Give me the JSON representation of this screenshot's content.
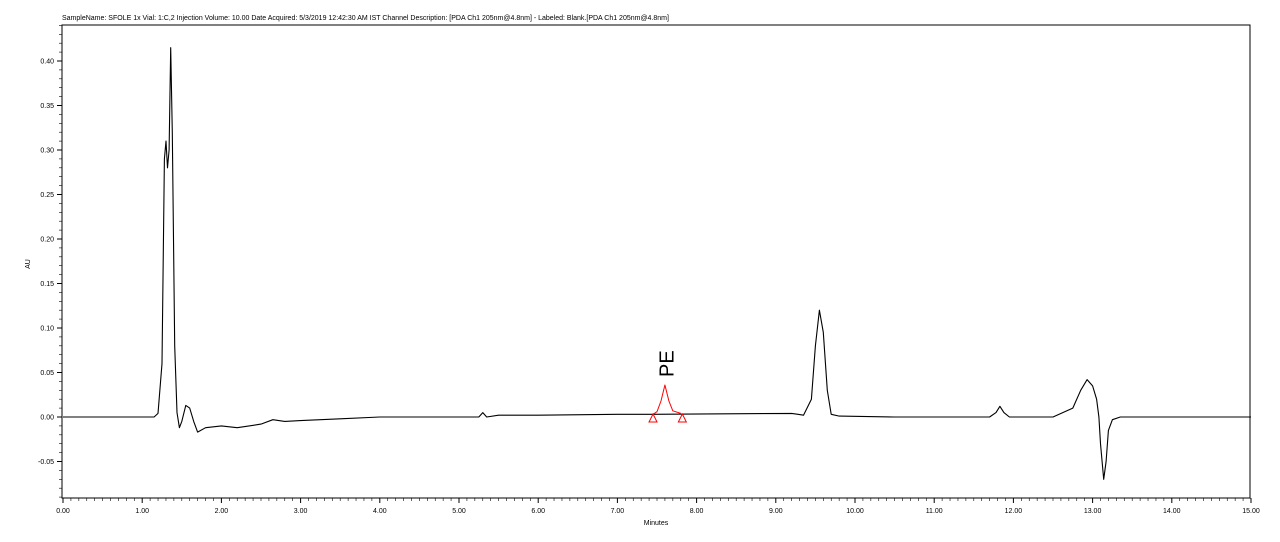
{
  "header": "SampleName: SFOLE 1x Vial: 1:C,2 Injection Volume: 10.00 Date Acquired: 5/3/2019 12:42:30 AM IST Channel Description: [PDA Ch1 205nm@4.8nm] - Labeled: Blank.[PDA Ch1 205nm@4.8nm]",
  "chart_data": {
    "type": "line",
    "title": "",
    "xlabel": "Minutes",
    "ylabel": "AU",
    "xlim": [
      0.0,
      15.0
    ],
    "ylim": [
      -0.095,
      0.44
    ],
    "x_ticks": [
      "0.00",
      "1.00",
      "2.00",
      "3.00",
      "4.00",
      "5.00",
      "6.00",
      "7.00",
      "8.00",
      "9.00",
      "10.00",
      "11.00",
      "12.00",
      "13.00",
      "14.00",
      "15.00"
    ],
    "x_tick_values": [
      0,
      1,
      2,
      3,
      4,
      5,
      6,
      7,
      8,
      9,
      10,
      11,
      12,
      13,
      14,
      15
    ],
    "y_ticks": [
      "-0.05",
      "0.00",
      "0.05",
      "0.10",
      "0.15",
      "0.20",
      "0.25",
      "0.30",
      "0.35",
      "0.40"
    ],
    "y_tick_values": [
      -0.05,
      0.0,
      0.05,
      0.1,
      0.15,
      0.2,
      0.25,
      0.3,
      0.35,
      0.4
    ],
    "grid": false,
    "series": [
      {
        "color": "#000000",
        "points": [
          [
            0.0,
            0.0
          ],
          [
            1.15,
            0.0
          ],
          [
            1.2,
            0.004
          ],
          [
            1.25,
            0.06
          ],
          [
            1.28,
            0.29
          ],
          [
            1.3,
            0.31
          ],
          [
            1.32,
            0.28
          ],
          [
            1.34,
            0.3
          ],
          [
            1.36,
            0.415
          ],
          [
            1.38,
            0.32
          ],
          [
            1.41,
            0.08
          ],
          [
            1.44,
            0.005
          ],
          [
            1.47,
            -0.012
          ],
          [
            1.5,
            -0.005
          ],
          [
            1.55,
            0.013
          ],
          [
            1.6,
            0.01
          ],
          [
            1.65,
            -0.005
          ],
          [
            1.7,
            -0.017
          ],
          [
            1.8,
            -0.012
          ],
          [
            2.0,
            -0.01
          ],
          [
            2.2,
            -0.012
          ],
          [
            2.5,
            -0.008
          ],
          [
            2.65,
            -0.003
          ],
          [
            2.8,
            -0.005
          ],
          [
            3.0,
            -0.004
          ],
          [
            3.5,
            -0.002
          ],
          [
            4.0,
            0.0
          ],
          [
            5.0,
            0.0
          ],
          [
            5.25,
            0.0
          ],
          [
            5.3,
            0.005
          ],
          [
            5.35,
            0.0
          ],
          [
            5.5,
            0.002
          ],
          [
            6.0,
            0.002
          ],
          [
            7.0,
            0.003
          ],
          [
            7.45,
            0.003
          ],
          [
            9.2,
            0.004
          ],
          [
            9.28,
            0.003
          ],
          [
            9.35,
            0.002
          ],
          [
            9.45,
            0.02
          ],
          [
            9.5,
            0.08
          ],
          [
            9.55,
            0.12
          ],
          [
            9.6,
            0.095
          ],
          [
            9.65,
            0.03
          ],
          [
            9.7,
            0.003
          ],
          [
            9.8,
            0.001
          ],
          [
            10.5,
            0.0
          ],
          [
            11.0,
            0.0
          ],
          [
            11.7,
            0.0
          ],
          [
            11.78,
            0.005
          ],
          [
            11.83,
            0.012
          ],
          [
            11.88,
            0.005
          ],
          [
            11.95,
            0.0
          ],
          [
            12.5,
            0.0
          ],
          [
            12.75,
            0.01
          ],
          [
            12.85,
            0.03
          ],
          [
            12.93,
            0.042
          ],
          [
            13.0,
            0.035
          ],
          [
            13.05,
            0.02
          ],
          [
            13.08,
            0.0
          ],
          [
            13.1,
            -0.03
          ],
          [
            13.14,
            -0.07
          ],
          [
            13.17,
            -0.05
          ],
          [
            13.2,
            -0.015
          ],
          [
            13.25,
            -0.003
          ],
          [
            13.35,
            0.0
          ],
          [
            15.0,
            0.0
          ]
        ]
      },
      {
        "color": "#ff0000",
        "points": [
          [
            7.45,
            0.003
          ],
          [
            7.5,
            0.006
          ],
          [
            7.55,
            0.018
          ],
          [
            7.6,
            0.036
          ],
          [
            7.65,
            0.018
          ],
          [
            7.7,
            0.007
          ],
          [
            7.8,
            0.004
          ]
        ]
      }
    ],
    "annotations": [
      {
        "text": "PE",
        "x": 7.62,
        "y": 0.036,
        "rotation": -90
      }
    ],
    "baseline_markers": [
      {
        "x": 7.45,
        "y": 0.0
      },
      {
        "x": 7.82,
        "y": 0.0
      }
    ]
  },
  "colors": {
    "trace": "#000000",
    "integration": "#ff0000",
    "frame": "#000000"
  }
}
